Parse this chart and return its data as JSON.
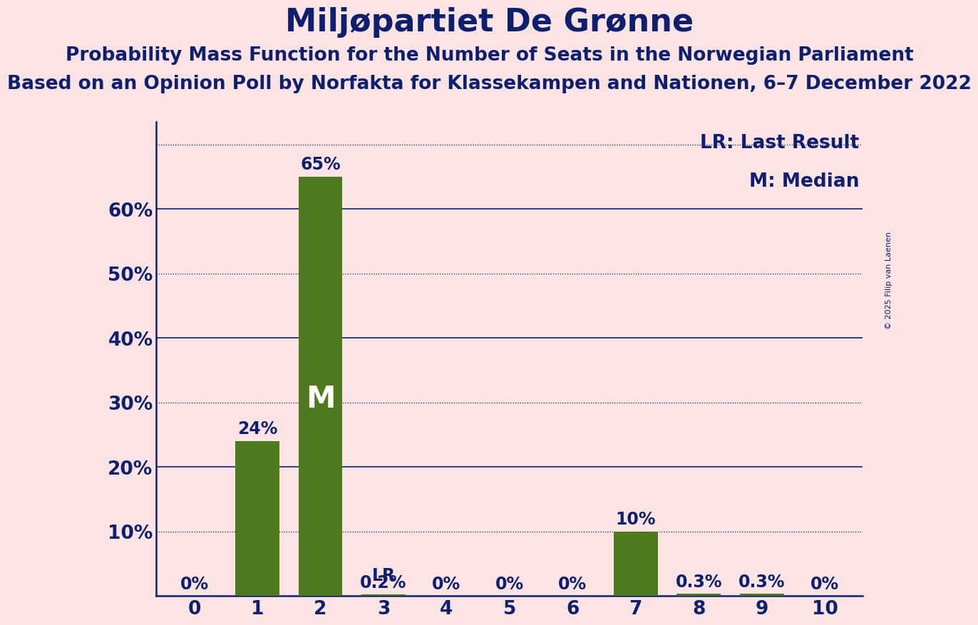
{
  "title": "Miljøpartiet De Grønne",
  "subtitle1": "Probability Mass Function for the Number of Seats in the Norwegian Parliament",
  "subtitle2": "Based on an Opinion Poll by Norfakta for Klassekampen and Nationen, 6–7 December 2022",
  "copyright": "© 2025 Filip van Laenen",
  "categories": [
    0,
    1,
    2,
    3,
    4,
    5,
    6,
    7,
    8,
    9,
    10
  ],
  "values": [
    0.0,
    0.24,
    0.65,
    0.002,
    0.0,
    0.0,
    0.0,
    0.1,
    0.003,
    0.003,
    0.0
  ],
  "bar_labels": [
    "0%",
    "24%",
    "65%",
    "0.2%",
    "0%",
    "0%",
    "0%",
    "10%",
    "0.3%",
    "0.3%",
    "0%"
  ],
  "bar_color": "#4e7a1e",
  "background_color": "#fce4e4",
  "text_color": "#0d1f6e",
  "grid_color": "#0d1f6e",
  "yticks": [
    0.0,
    0.1,
    0.2,
    0.3,
    0.4,
    0.5,
    0.6
  ],
  "ytick_labels": [
    "",
    "10%",
    "20%",
    "30%",
    "40%",
    "50%",
    "60%"
  ],
  "ylim": [
    0,
    0.735
  ],
  "median_bar": 2,
  "last_result_bar": 3,
  "legend_lr": "LR: Last Result",
  "legend_m": "M: Median",
  "title_fontsize": 32,
  "subtitle1_fontsize": 19,
  "subtitle2_fontsize": 19,
  "bar_label_fontsize": 17,
  "axis_label_fontsize": 19,
  "legend_fontsize": 19,
  "copyright_fontsize": 8,
  "solid_gridlines": [
    0.2,
    0.4,
    0.6
  ],
  "dotted_gridlines": [
    0.1,
    0.3,
    0.5,
    0.7
  ]
}
